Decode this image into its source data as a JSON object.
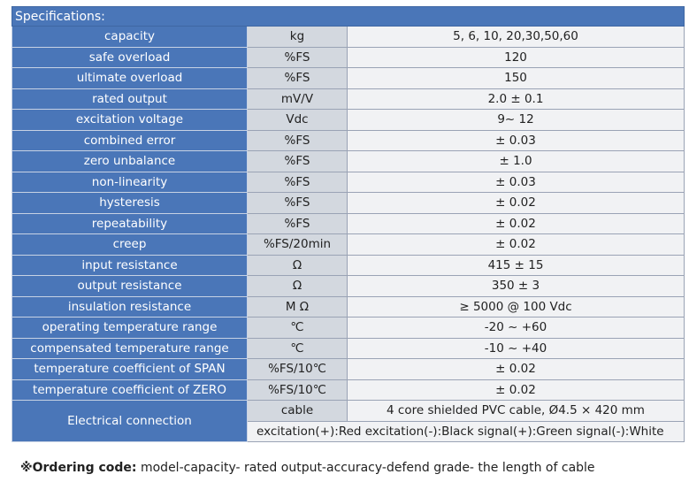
{
  "specifications": {
    "header": "Specifications:",
    "rows": [
      {
        "parameter": "capacity",
        "unit": "kg",
        "value": "5, 6,   10, 20,30,50,60"
      },
      {
        "parameter": "safe overload",
        "unit": "%FS",
        "value": "120"
      },
      {
        "parameter": "ultimate overload",
        "unit": "%FS",
        "value": "150"
      },
      {
        "parameter": "rated output",
        "unit": "mV/V",
        "value": "2.0 ± 0.1"
      },
      {
        "parameter": "excitation voltage",
        "unit": "Vdc",
        "value": "9~ 12"
      },
      {
        "parameter": "combined error",
        "unit": "%FS",
        "value": "± 0.03"
      },
      {
        "parameter": "zero unbalance",
        "unit": "%FS",
        "value": "± 1.0"
      },
      {
        "parameter": "non-linearity",
        "unit": "%FS",
        "value": "± 0.03"
      },
      {
        "parameter": "hysteresis",
        "unit": "%FS",
        "value": "± 0.02"
      },
      {
        "parameter": "repeatability",
        "unit": "%FS",
        "value": "± 0.02"
      },
      {
        "parameter": "creep",
        "unit": "%FS/20min",
        "value": "± 0.02"
      },
      {
        "parameter": "input resistance",
        "unit": "Ω",
        "value": "415 ± 15"
      },
      {
        "parameter": "output resistance",
        "unit": "Ω",
        "value": "350 ± 3"
      },
      {
        "parameter": "insulation resistance",
        "unit": "M Ω",
        "value": "≥ 5000 @ 100 Vdc"
      },
      {
        "parameter": "operating temperature range",
        "unit": "℃",
        "value": "-20 ~ +60"
      },
      {
        "parameter": "compensated temperature range",
        "unit": "℃",
        "value": "-10 ~ +40"
      },
      {
        "parameter": "temperature coefficient of SPAN",
        "unit": "%FS/10℃",
        "value": "± 0.02"
      },
      {
        "parameter": "temperature coefficient of ZERO",
        "unit": "%FS/10℃",
        "value": "± 0.02"
      }
    ],
    "electrical": {
      "parameter": "Electrical connection",
      "unit": "cable",
      "value": "4 core shielded PVC cable, Ø4.5 × 420 mm",
      "wiring": "excitation(+):Red excitation(-):Black signal(+):Green signal(-):White"
    }
  },
  "ordering": {
    "label": "※Ordering code:",
    "text": " model-capacity- rated output-accuracy-defend grade- the length of cable"
  }
}
